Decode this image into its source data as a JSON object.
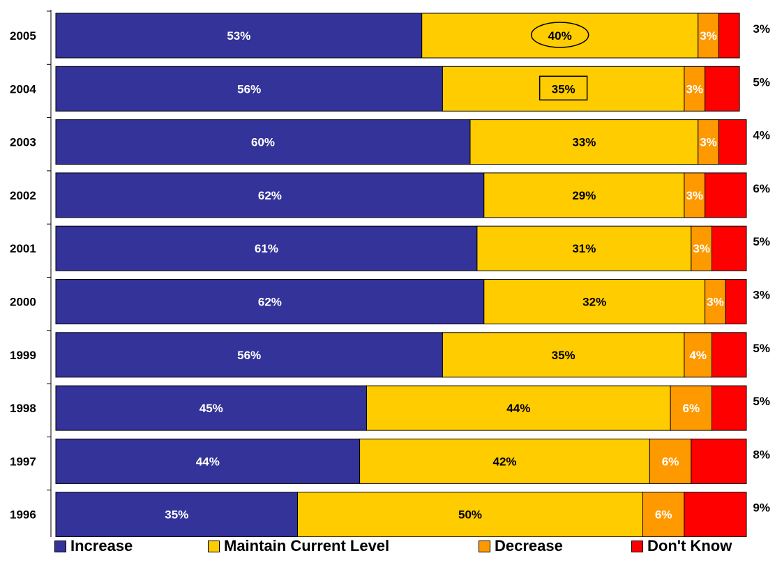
{
  "chart_data": {
    "type": "bar",
    "orientation": "horizontal",
    "stacked": true,
    "categories": [
      "2005",
      "2004",
      "2003",
      "2002",
      "2001",
      "2000",
      "1999",
      "1998",
      "1997",
      "1996"
    ],
    "series": [
      {
        "name": "Increase",
        "color": "#333399",
        "values": [
          53,
          56,
          60,
          62,
          61,
          62,
          56,
          45,
          44,
          35
        ],
        "labels": [
          "53%",
          "56%",
          "60%",
          "62%",
          "61%",
          "62%",
          "56%",
          "45%",
          "44%",
          "35%"
        ]
      },
      {
        "name": "Maintain Current Level",
        "color": "#FFCC00",
        "values": [
          40,
          35,
          33,
          29,
          31,
          32,
          35,
          44,
          42,
          50
        ],
        "labels": [
          "40%",
          "35%",
          "33%",
          "29%",
          "31%",
          "32%",
          "35%",
          "44%",
          "42%",
          "50%"
        ]
      },
      {
        "name": "Decrease",
        "color": "#FF9900",
        "values": [
          3,
          3,
          3,
          3,
          3,
          3,
          4,
          6,
          6,
          6
        ],
        "labels": [
          "3%",
          "3%",
          "3%",
          "3%",
          "3%",
          "3%",
          "4%",
          "6%",
          "6%",
          "6%"
        ]
      },
      {
        "name": "Don't Know",
        "color": "#FF0000",
        "values": [
          3,
          5,
          4,
          6,
          5,
          3,
          5,
          5,
          8,
          9
        ],
        "labels": [
          "3%",
          "5%",
          "4%",
          "6%",
          "5%",
          "3%",
          "5%",
          "5%",
          "8%",
          "9%"
        ]
      }
    ],
    "annotations": [
      {
        "category": "2005",
        "series": "Maintain Current Level",
        "shape": "ellipse"
      },
      {
        "category": "2004",
        "series": "Maintain Current Level",
        "shape": "rectangle"
      }
    ],
    "xlim": [
      0,
      100
    ],
    "grid": false,
    "legend_position": "bottom"
  }
}
